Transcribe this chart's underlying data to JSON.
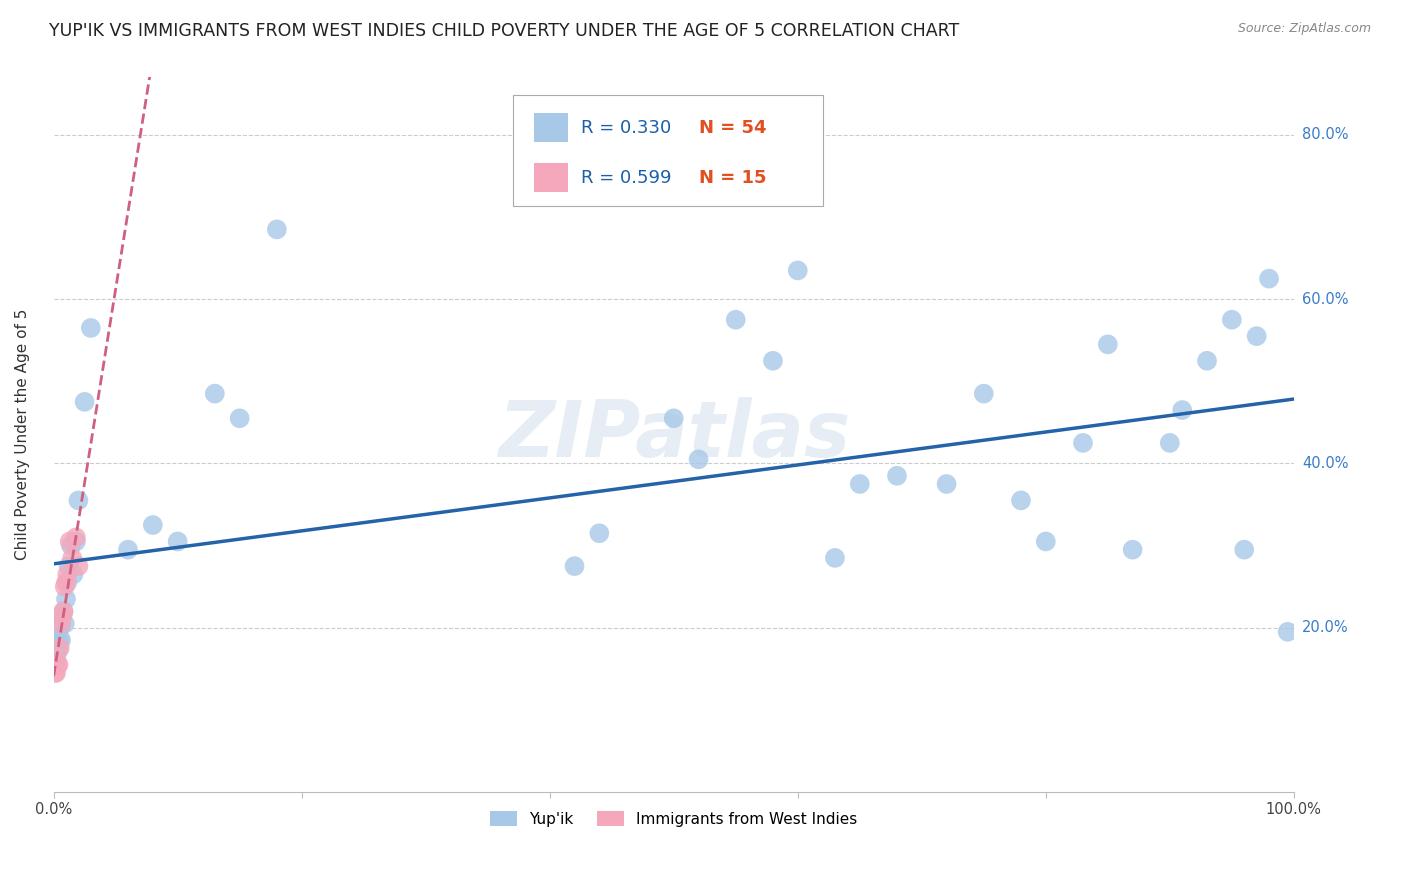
{
  "title": "YUP'IK VS IMMIGRANTS FROM WEST INDIES CHILD POVERTY UNDER THE AGE OF 5 CORRELATION CHART",
  "source": "Source: ZipAtlas.com",
  "ylabel": "Child Poverty Under the Age of 5",
  "xlim": [
    0.0,
    1.0
  ],
  "ylim": [
    0.0,
    0.87
  ],
  "yticks": [
    0.2,
    0.4,
    0.6,
    0.8
  ],
  "ytick_labels": [
    "20.0%",
    "40.0%",
    "60.0%",
    "80.0%"
  ],
  "series1_label": "Yup'ik",
  "series1_R": "0.330",
  "series1_N": "54",
  "series1_color": "#a8c8e8",
  "series1_line_color": "#2563a8",
  "series2_label": "Immigrants from West Indies",
  "series2_R": "0.599",
  "series2_N": "15",
  "series2_color": "#f5a8bc",
  "series2_line_color": "#d06080",
  "watermark": "ZIPatlas",
  "background_color": "#ffffff",
  "grid_color": "#cccccc",
  "legend_R_color": "#1a5fa8",
  "legend_N_color": "#e05020",
  "title_fontsize": 12.5,
  "axis_label_fontsize": 11,
  "tick_fontsize": 10.5,
  "legend_fontsize": 13,
  "series1_x": [
    0.001,
    0.002,
    0.002,
    0.003,
    0.003,
    0.004,
    0.004,
    0.005,
    0.005,
    0.006,
    0.006,
    0.007,
    0.008,
    0.009,
    0.01,
    0.011,
    0.012,
    0.014,
    0.016,
    0.018,
    0.02,
    0.025,
    0.03,
    0.06,
    0.08,
    0.1,
    0.13,
    0.15,
    0.18,
    0.42,
    0.44,
    0.5,
    0.52,
    0.55,
    0.58,
    0.6,
    0.63,
    0.65,
    0.68,
    0.72,
    0.75,
    0.78,
    0.8,
    0.83,
    0.85,
    0.87,
    0.9,
    0.91,
    0.93,
    0.95,
    0.96,
    0.97,
    0.98,
    0.995
  ],
  "series1_y": [
    0.175,
    0.16,
    0.19,
    0.17,
    0.2,
    0.175,
    0.21,
    0.185,
    0.2,
    0.185,
    0.205,
    0.215,
    0.22,
    0.205,
    0.235,
    0.255,
    0.275,
    0.3,
    0.265,
    0.305,
    0.355,
    0.475,
    0.565,
    0.295,
    0.325,
    0.305,
    0.485,
    0.455,
    0.685,
    0.275,
    0.315,
    0.455,
    0.405,
    0.575,
    0.525,
    0.635,
    0.285,
    0.375,
    0.385,
    0.375,
    0.485,
    0.355,
    0.305,
    0.425,
    0.545,
    0.295,
    0.425,
    0.465,
    0.525,
    0.575,
    0.295,
    0.555,
    0.625,
    0.195
  ],
  "series2_x": [
    0.001,
    0.002,
    0.003,
    0.004,
    0.005,
    0.006,
    0.007,
    0.008,
    0.009,
    0.01,
    0.011,
    0.013,
    0.015,
    0.018,
    0.02
  ],
  "series2_y": [
    0.145,
    0.145,
    0.155,
    0.155,
    0.175,
    0.205,
    0.215,
    0.22,
    0.25,
    0.255,
    0.265,
    0.305,
    0.285,
    0.31,
    0.275
  ]
}
